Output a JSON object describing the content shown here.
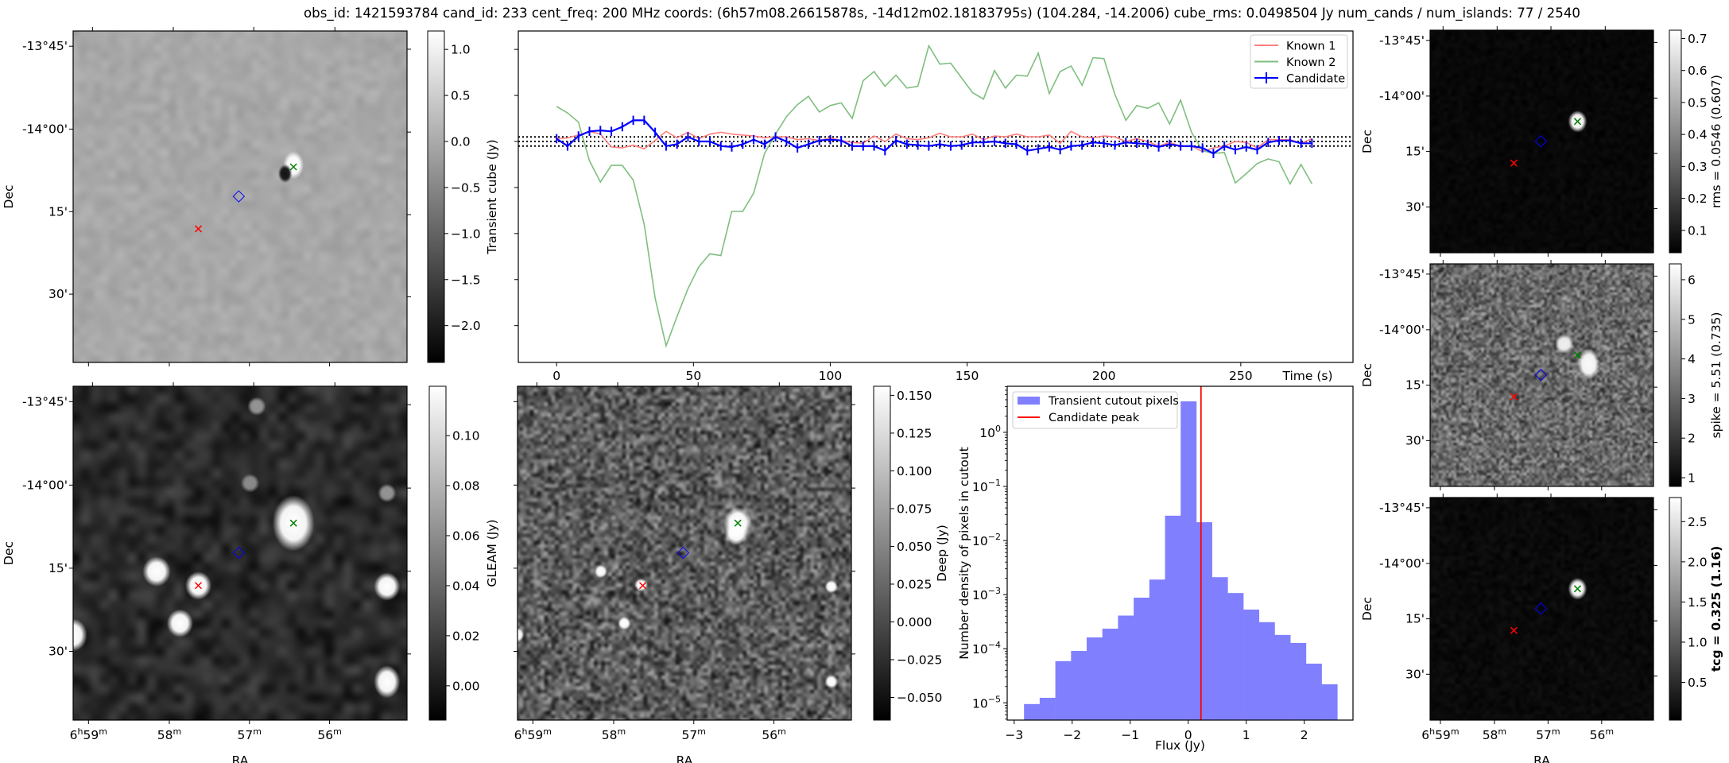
{
  "title": "obs_id: 1421593784 cand_id: 233 cent_freq: 200 MHz coords: (6h57m08.26615878s, -14d12m02.18183795s) (104.284, -14.2006) cube_rms: 0.0498504 Jy num_cands / num_islands: 77 / 2540",
  "axes": {
    "dec_label": "Dec",
    "ra_label": "RA",
    "dec_ticks": [
      "-13°45'",
      "-14°00'",
      "15'",
      "30'"
    ],
    "ra_ticks": [
      [
        "6",
        "h",
        "59",
        "m"
      ],
      [
        "",
        "",
        "58",
        "m"
      ],
      [
        "",
        "",
        "57",
        "m"
      ],
      [
        "",
        "",
        "56",
        "m"
      ]
    ]
  },
  "markers": {
    "known1_color": "#ff0000",
    "known2_color": "#008000",
    "candidate_color": "#0000ff"
  },
  "images": {
    "transient": {
      "cbar_label": "Transient cube (Jy)",
      "vlim": [
        -2.4,
        1.2
      ],
      "cbar_ticks": [
        "1.0",
        "0.5",
        "0.0",
        "−0.5",
        "−1.0",
        "−1.5",
        "−2.0"
      ],
      "cbar_values": [
        1.0,
        0.5,
        0.0,
        -0.5,
        -1.0,
        -1.5,
        -2.0
      ]
    },
    "gleam": {
      "cbar_label": "GLEAM (Jy)",
      "vlim": [
        -0.0137,
        0.1197
      ],
      "cbar_ticks": [
        "0.10",
        "0.08",
        "0.06",
        "0.04",
        "0.02",
        "0.00"
      ],
      "cbar_values": [
        0.1,
        0.08,
        0.06,
        0.04,
        0.02,
        0.0
      ]
    },
    "deep": {
      "cbar_label": "Deep (Jy)",
      "vlim": [
        -0.065,
        0.156
      ],
      "cbar_ticks": [
        "0.150",
        "0.125",
        "0.100",
        "0.075",
        "0.050",
        "0.025",
        "0.000",
        "−0.025",
        "−0.050"
      ],
      "cbar_values": [
        0.15,
        0.125,
        0.1,
        0.075,
        0.05,
        0.025,
        0.0,
        -0.025,
        -0.05
      ]
    },
    "rms": {
      "cbar_label": "rms = 0.0546 (0.607)",
      "vlim": [
        0.03,
        0.726
      ],
      "cbar_ticks": [
        "0.7",
        "0.6",
        "0.5",
        "0.4",
        "0.3",
        "0.2",
        "0.1"
      ],
      "cbar_values": [
        0.7,
        0.6,
        0.5,
        0.4,
        0.3,
        0.2,
        0.1
      ]
    },
    "spike": {
      "cbar_label": "spike = 5.51 (0.735)",
      "vlim": [
        0.78,
        6.4
      ],
      "cbar_ticks": [
        "6",
        "5",
        "4",
        "3",
        "2",
        "1"
      ],
      "cbar_values": [
        6,
        5,
        4,
        3,
        2,
        1
      ]
    },
    "tcg": {
      "cbar_label": "tcg = 0.325 (1.16)",
      "vlim": [
        0.03,
        2.8
      ],
      "cbar_ticks": [
        "2.5",
        "2.0",
        "1.5",
        "1.0",
        "0.5"
      ],
      "cbar_values": [
        2.5,
        2.0,
        1.5,
        1.0,
        0.5
      ]
    }
  },
  "chart_data": [
    {
      "type": "line",
      "title": "",
      "xlabel": "Time (s)",
      "ylabel": "",
      "xlim": [
        -14,
        291
      ],
      "ylim": [
        -2.4,
        1.2
      ],
      "x_ticks": [
        "0",
        "50",
        "100",
        "150",
        "200",
        "250"
      ],
      "x_tick_values": [
        0,
        50,
        100,
        150,
        200,
        250
      ],
      "y_tick_values": [
        1.0,
        0.5,
        0.0,
        -0.5,
        -1.0,
        -1.5,
        -2.0
      ],
      "legend_position": "top-right",
      "x_start": 0,
      "x_step": 4,
      "hlines": [
        0.0499,
        0.0,
        -0.0499
      ],
      "series": [
        {
          "name": "Known 1",
          "color": "#ff7f7f",
          "values": [
            0.03,
            0.04,
            0.07,
            0.11,
            0.08,
            -0.06,
            -0.07,
            -0.04,
            -0.08,
            0.01,
            0.11,
            0.04,
            0.1,
            0.03,
            0.08,
            0.1,
            0.08,
            0.07,
            0.06,
            0.04,
            0.05,
            0.05,
            0.02,
            0.03,
            0.01,
            0.04,
            0.01,
            -0.01,
            -0.02,
            0.06,
            0.0,
            0.08,
            0.03,
            0.02,
            0.04,
            0.09,
            0.05,
            0.05,
            0.08,
            0.02,
            0.06,
            0.05,
            0.08,
            0.05,
            0.05,
            0.07,
            -0.02,
            0.11,
            0.05,
            0.04,
            0.06,
            0.05,
            0.0,
            0.03,
            0.0,
            -0.05,
            -0.01,
            -0.05,
            -0.05,
            -0.11,
            -0.07,
            -0.05,
            0.0,
            -0.01,
            -0.07,
            0.02,
            0.02,
            0.02,
            -0.02,
            0.03
          ]
        },
        {
          "name": "Known 2",
          "color": "#7fbf7f",
          "values": [
            0.38,
            0.31,
            0.21,
            -0.21,
            -0.44,
            -0.26,
            -0.26,
            -0.42,
            -0.9,
            -1.7,
            -2.22,
            -1.9,
            -1.6,
            -1.36,
            -1.22,
            -1.24,
            -0.76,
            -0.76,
            -0.56,
            -0.13,
            0.08,
            0.27,
            0.4,
            0.49,
            0.32,
            0.39,
            0.42,
            0.25,
            0.66,
            0.76,
            0.6,
            0.72,
            0.58,
            0.6,
            1.04,
            0.84,
            0.85,
            0.69,
            0.53,
            0.46,
            0.77,
            0.58,
            0.72,
            0.71,
            0.96,
            0.52,
            0.76,
            0.82,
            0.61,
            0.91,
            0.9,
            0.51,
            0.23,
            0.39,
            0.36,
            0.42,
            0.19,
            0.45,
            0.1,
            -0.1,
            -0.13,
            -0.12,
            -0.45,
            -0.35,
            -0.24,
            -0.19,
            -0.22,
            -0.46,
            -0.25,
            -0.46
          ]
        },
        {
          "name": "Candidate",
          "color": "#0000ff",
          "error": 0.05,
          "values": [
            0.03,
            -0.05,
            0.06,
            0.11,
            0.12,
            0.11,
            0.16,
            0.23,
            0.23,
            0.1,
            -0.05,
            -0.03,
            0.05,
            0.0,
            0.0,
            -0.05,
            -0.06,
            -0.03,
            0.02,
            -0.03,
            0.05,
            0.0,
            -0.07,
            -0.03,
            0.01,
            0.02,
            0.01,
            -0.05,
            -0.05,
            -0.05,
            -0.1,
            0.01,
            -0.03,
            -0.04,
            -0.05,
            -0.03,
            -0.05,
            -0.04,
            -0.01,
            -0.01,
            0.0,
            -0.02,
            -0.03,
            -0.1,
            -0.08,
            -0.06,
            -0.09,
            -0.05,
            -0.04,
            -0.01,
            -0.02,
            -0.04,
            -0.01,
            -0.02,
            -0.03,
            -0.06,
            -0.03,
            -0.05,
            -0.05,
            -0.07,
            -0.13,
            -0.05,
            -0.09,
            -0.06,
            -0.09,
            -0.01,
            0.01,
            0.01,
            -0.02,
            -0.02
          ]
        }
      ]
    },
    {
      "type": "bar",
      "subtype": "histogram",
      "xlabel": "Flux (Jy)",
      "ylabel": "Number density of pixels in cutout",
      "yscale": "log",
      "xlim": [
        -3.12,
        2.84
      ],
      "ylim": [
        4.8e-06,
        7.1
      ],
      "x_ticks": [
        "−3",
        "−2",
        "−1",
        "0",
        "1",
        "2"
      ],
      "x_tick_values": [
        -3,
        -2,
        -1,
        0,
        1,
        2
      ],
      "y_ticks": [
        [
          "10",
          "0"
        ],
        [
          "10",
          "−1"
        ],
        [
          "10",
          "−2"
        ],
        [
          "10",
          "−3"
        ],
        [
          "10",
          "−4"
        ],
        [
          "10",
          "−5"
        ]
      ],
      "y_tick_exponents": [
        0,
        -1,
        -2,
        -3,
        -4,
        -5
      ],
      "legend_position": "top-left",
      "bin_start": -2.83,
      "bin_width": 0.27,
      "values": [
        9.5e-06,
        1.24e-05,
        5.9e-05,
        9.1e-05,
        0.000162,
        0.000235,
        0.00041,
        0.00088,
        0.0019,
        0.0288,
        3.74,
        0.0218,
        0.0021,
        0.00107,
        0.00053,
        0.00031,
        0.00018,
        0.000128,
        5.3e-05,
        2.2e-05
      ],
      "bar_color": "#8080ff",
      "series_name": "Transient cutout pixels",
      "vline": {
        "name": "Candidate peak",
        "x": 0.22,
        "color": "#ff0000"
      }
    }
  ]
}
